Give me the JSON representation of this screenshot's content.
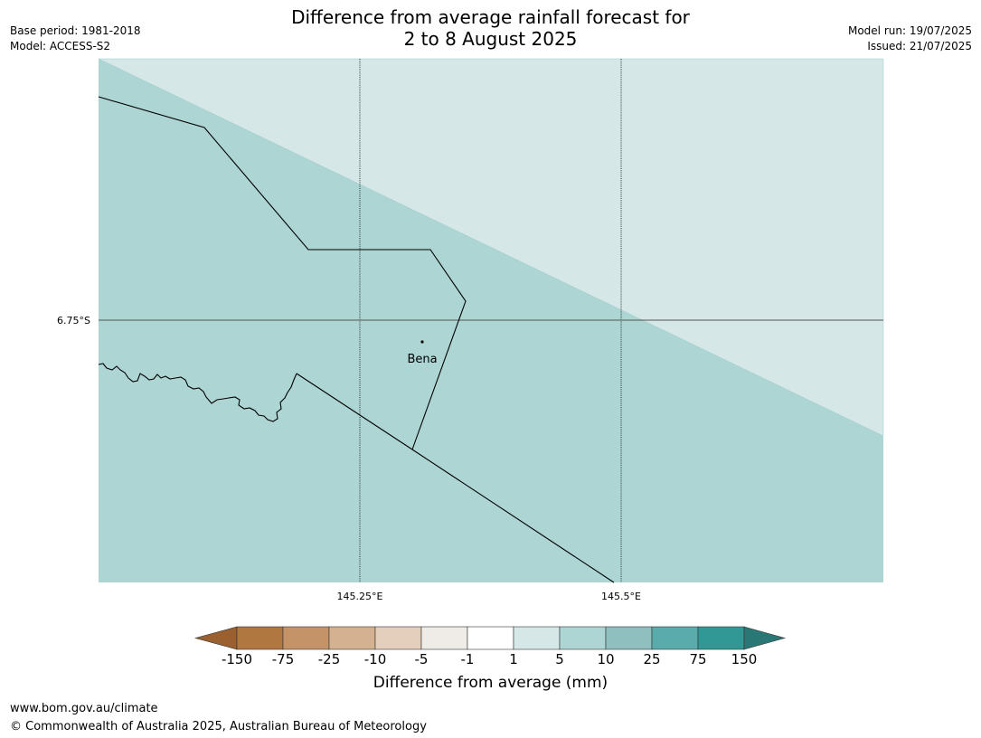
{
  "title": {
    "line1": "Difference from average rainfall forecast for",
    "line2": "2 to 8 August 2025"
  },
  "meta_left": {
    "base_period": "Base period: 1981-2018",
    "model": "Model: ACCESS-S2"
  },
  "meta_right": {
    "model_run": "Model run: 19/07/2025",
    "issued": "Issued: 21/07/2025"
  },
  "map": {
    "lat_labels": [
      "6.75°S"
    ],
    "lon_labels": [
      "145.25°E",
      "145.5°E"
    ],
    "place": {
      "name": "Bena"
    },
    "zones": [
      {
        "category": "1 to 5",
        "color": "#d5e8e7"
      },
      {
        "category": "5 to 10",
        "color": "#acd5d4"
      }
    ]
  },
  "colorbar": {
    "title": "Difference from average (mm)",
    "ticks": [
      "-150",
      "-75",
      "-25",
      "-10",
      "-5",
      "-1",
      "1",
      "5",
      "10",
      "25",
      "75",
      "150"
    ],
    "colors": [
      "#9a6030",
      "#b07840",
      "#c49468",
      "#d4b190",
      "#e4cfbd",
      "#efebe7",
      "#ffffff",
      "#d5e8e7",
      "#acd5d4",
      "#8fbfbe",
      "#5aabab",
      "#329896",
      "#2a7876"
    ]
  },
  "footer": {
    "url": "www.bom.gov.au/climate",
    "copyright": "© Commonwealth of Australia 2025, Australian Bureau of Meteorology"
  }
}
